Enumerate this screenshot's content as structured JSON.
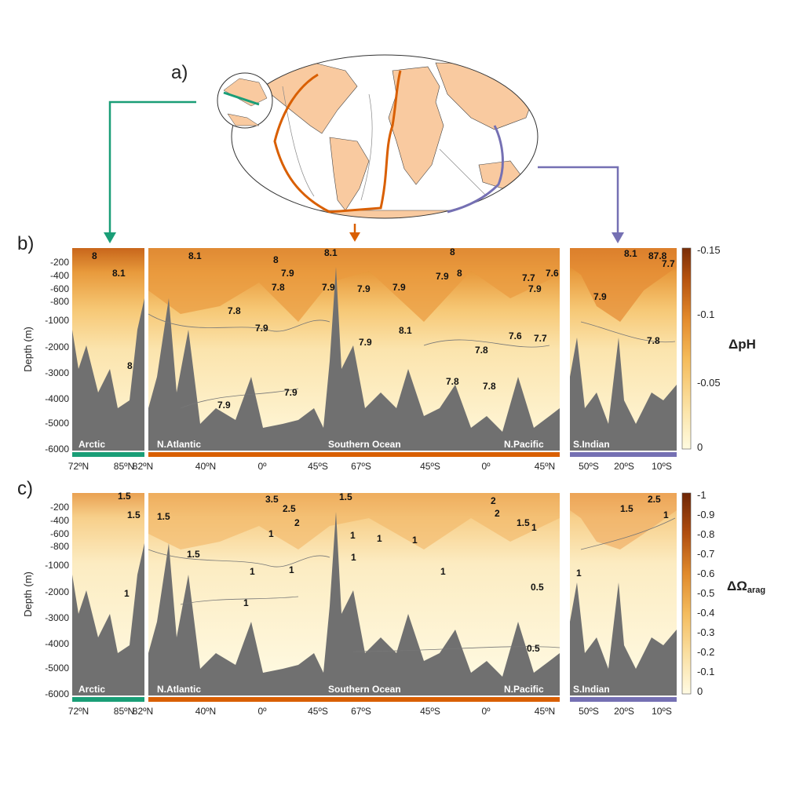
{
  "panel_a_label": "a)",
  "panel_b_label": "b)",
  "panel_c_label": "c)",
  "colors": {
    "arctic": "#1a9e77",
    "atlantic_pacific": "#d95f02",
    "indian": "#7570b3",
    "land": "#f9caa0",
    "seafloor": "#707070"
  },
  "depth_axis": {
    "title": "Depth (m)",
    "ticks": [
      "-200",
      "-400",
      "-600",
      "-800",
      "-1000",
      "-2000",
      "-3000",
      "-4000",
      "-5000",
      "-6000"
    ]
  },
  "sections": [
    {
      "name": "Arctic",
      "ticks": [
        "72ºN",
        "85ºN",
        "82ºN"
      ]
    },
    {
      "name": "N.Atlantic",
      "ticks": [
        "40ºN",
        "0º",
        "45ºS"
      ]
    },
    {
      "name": "Southern Ocean",
      "ticks": [
        "67ºS"
      ]
    },
    {
      "name": "N.Pacific",
      "ticks": [
        "45ºS",
        "0º",
        "45ºN"
      ]
    },
    {
      "name": "S.Indian",
      "ticks": [
        "50ºS",
        "20ºS",
        "10ºS"
      ]
    }
  ],
  "panel_b": {
    "colorbar_title": "ΔpH",
    "colorbar_ticks": [
      "-0.15",
      "-0.1",
      "-0.05",
      "0"
    ],
    "contour_labels": [
      "8",
      "8.1",
      "8.1",
      "8",
      "7.9",
      "7.8",
      "7.8",
      "7.9",
      "8.1",
      "7.9",
      "7.9",
      "7.9",
      "7.9",
      "8.1",
      "8",
      "8",
      "7.9",
      "7.7",
      "7.6",
      "7.9",
      "7.7",
      "7.6",
      "7.8",
      "7.8",
      "7.8",
      "7.9",
      "7.9",
      "8",
      "8.1",
      "87.8",
      "7.7",
      "7.9",
      "7.8"
    ]
  },
  "panel_c": {
    "colorbar_title_main": "ΔΩ",
    "colorbar_title_sub": "arag",
    "colorbar_ticks": [
      "-1",
      "-0.9",
      "-0.8",
      "-0.7",
      "-0.6",
      "-0.5",
      "-0.4",
      "-0.3",
      "-0.2",
      "-0.1",
      "0"
    ],
    "contour_labels": [
      "1.5",
      "1.5",
      "1",
      "1.5",
      "1.5",
      "3.5",
      "2.5",
      "2",
      "1",
      "1",
      "1.5",
      "1",
      "1",
      "1",
      "1",
      "1",
      "1",
      "2",
      "2",
      "1.5",
      "1",
      "1",
      "0.5",
      "0.5",
      "1.5",
      "2.5",
      "1",
      "1"
    ]
  }
}
